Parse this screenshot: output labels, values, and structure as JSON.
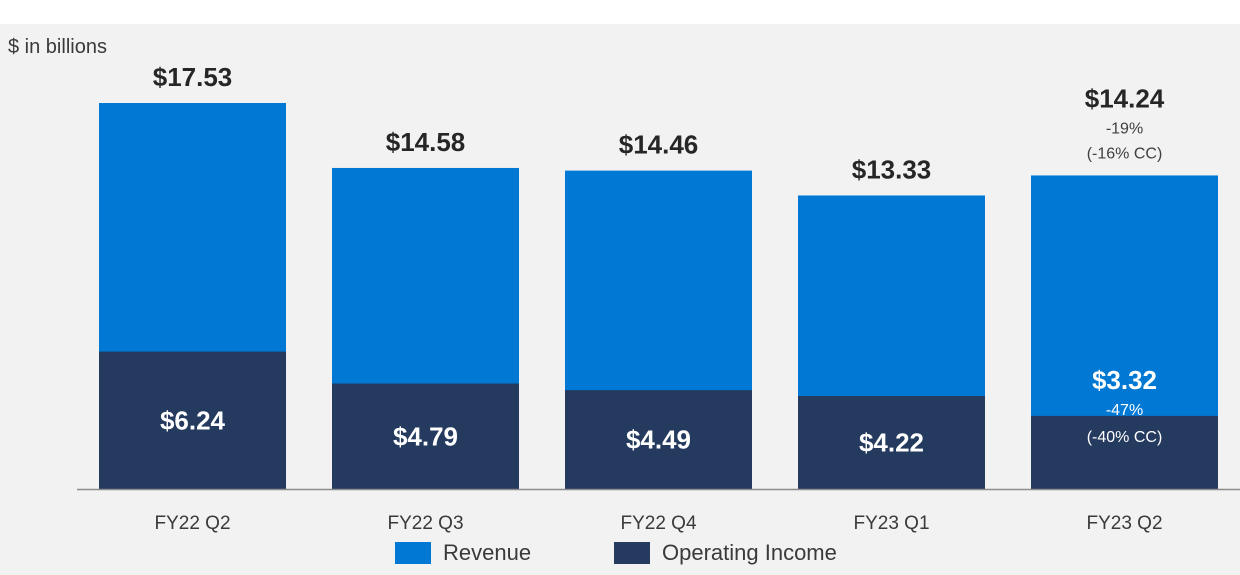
{
  "chart_data": {
    "type": "bar",
    "stacked": false,
    "overlay": true,
    "unit_label": "$ in billions",
    "categories": [
      "FY22 Q2",
      "FY22 Q3",
      "FY22 Q4",
      "FY23 Q1",
      "FY23 Q2"
    ],
    "series": [
      {
        "name": "Revenue",
        "color": "#0078d4",
        "values": [
          17.53,
          14.58,
          14.46,
          13.33,
          14.24
        ],
        "labels": [
          "$17.53",
          "$14.58",
          "$14.46",
          "$13.33",
          "$14.24"
        ]
      },
      {
        "name": "Operating Income",
        "color": "#243a5e",
        "values": [
          6.24,
          4.79,
          4.49,
          4.22,
          3.32
        ],
        "labels": [
          "$6.24",
          "$4.79",
          "$4.49",
          "$4.22",
          "$3.32"
        ]
      }
    ],
    "annotations": [
      {
        "category": "FY23 Q2",
        "series": "Revenue",
        "lines": [
          "-19%",
          "(-16% CC)"
        ]
      },
      {
        "category": "FY23 Q2",
        "series": "Operating Income",
        "lines": [
          "-47%",
          "(-40% CC)"
        ]
      }
    ],
    "ylim": [
      0,
      17.53
    ],
    "grid": false,
    "legend_position": "bottom"
  }
}
